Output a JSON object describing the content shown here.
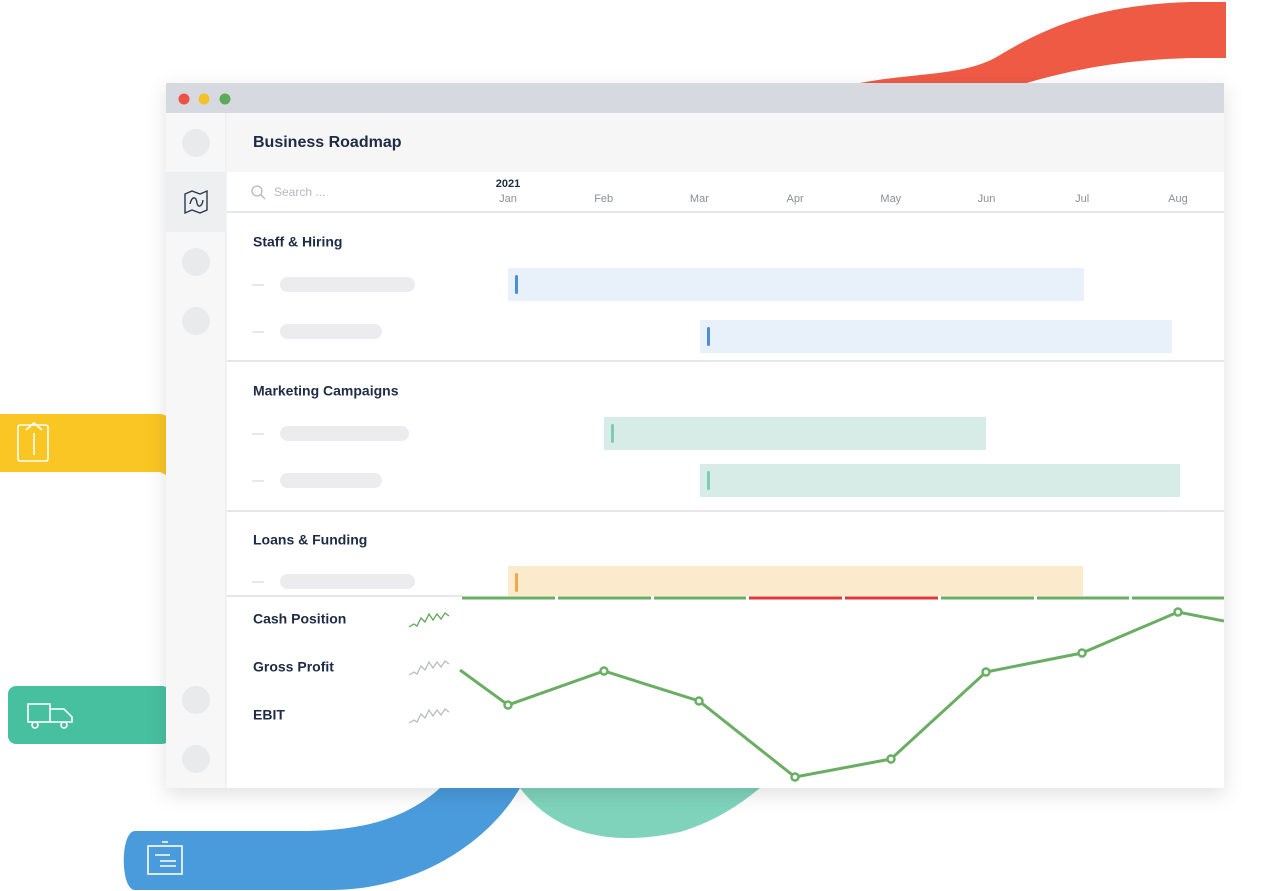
{
  "header": {
    "title": "Business Roadmap"
  },
  "search": {
    "placeholder": "Search ..."
  },
  "timeline": {
    "year": "2021",
    "months": [
      "Jan",
      "Feb",
      "Mar",
      "Apr",
      "May",
      "Jun",
      "Jul",
      "Aug"
    ]
  },
  "sections": [
    {
      "title": "Staff & Hiring"
    },
    {
      "title": "Marketing Campaigns"
    },
    {
      "title": "Loans & Funding"
    }
  ],
  "metrics": [
    {
      "name": "Cash Position"
    },
    {
      "name": "Gross Profit"
    },
    {
      "name": "EBIT"
    }
  ]
}
